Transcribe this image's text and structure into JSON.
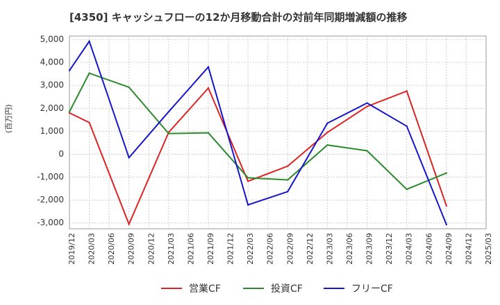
{
  "chart_data": {
    "type": "line",
    "title": "[4350]  キャッシュフローの12か月移動合計の対前年同期増減額の推移",
    "ylabel": "(百万円)",
    "xlabel": "",
    "ylim": [
      -3250,
      5150
    ],
    "yticks": [
      5000,
      4000,
      3000,
      2000,
      1000,
      0,
      -1000,
      -2000,
      -3000
    ],
    "ytick_labels": [
      "5,000",
      "4,000",
      "3,000",
      "2,000",
      "1,000",
      "0",
      "-1,000",
      "-2,000",
      "-3,000"
    ],
    "categories": [
      "2019/12",
      "2020/03",
      "2020/06",
      "2020/09",
      "2020/12",
      "2021/03",
      "2021/06",
      "2021/09",
      "2021/12",
      "2022/03",
      "2022/06",
      "2022/09",
      "2022/12",
      "2023/03",
      "2023/06",
      "2023/09",
      "2023/12",
      "2024/03",
      "2024/06",
      "2024/09",
      "2024/12",
      "2025/03"
    ],
    "grid": true,
    "legend_position": "bottom",
    "series": [
      {
        "name": "営業CF",
        "color": "#dd2222",
        "values": [
          1800,
          1380,
          null,
          -3050,
          null,
          950,
          null,
          2880,
          null,
          -1180,
          null,
          -520,
          null,
          950,
          null,
          2080,
          null,
          2750,
          null,
          -2250,
          null,
          null
        ]
      },
      {
        "name": "投資CF",
        "color": "#2a8a2a",
        "values": [
          1850,
          3530,
          null,
          2920,
          null,
          900,
          null,
          930,
          null,
          -1030,
          null,
          -1120,
          null,
          400,
          null,
          150,
          null,
          -1530,
          null,
          -820,
          null,
          null
        ]
      },
      {
        "name": "フリーCF",
        "color": "#1515cc",
        "values": [
          3650,
          4920,
          null,
          -150,
          null,
          1850,
          null,
          3800,
          null,
          -2210,
          null,
          -1630,
          null,
          1350,
          null,
          2230,
          null,
          1220,
          null,
          -3070,
          null,
          null
        ]
      }
    ]
  }
}
